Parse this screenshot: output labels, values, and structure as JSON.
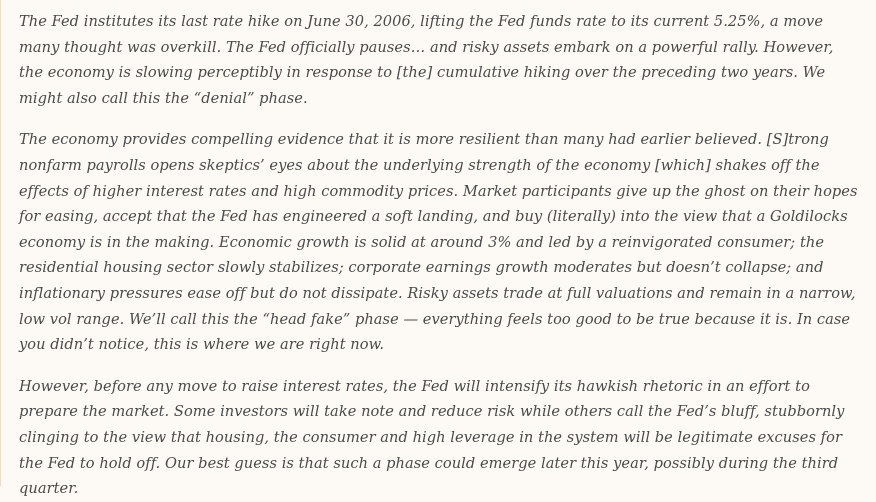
{
  "quote": {
    "paragraphs": [
      "The Fed institutes its last rate hike on June 30, 2006, lifting the Fed funds rate to its current 5.25%, a move many thought was overkill. The Fed officially pauses… and risky assets embark on a powerful rally. However, the economy is slowing perceptibly in response to [the] cumulative hiking over the preceding two years. We might also call this the “denial” phase.",
      "The economy provides compelling evidence that it is more resilient than many had earlier believed. [S]trong nonfarm payrolls opens skeptics’ eyes about the underlying strength of the economy [which] shakes off the effects of higher interest rates and high commodity prices. Market participants give up the ghost on their hopes for easing, accept that the Fed has engineered a soft landing, and buy (literally) into the view that a Goldilocks economy is in the making. Economic growth is solid at around 3% and led by a reinvigorated consumer; the residential housing sector slowly stabilizes; corporate earnings growth moderates but doesn’t collapse; and inflationary pressures ease off but do not dissipate. Risky assets trade at full valuations and remain in a narrow, low vol range. We’ll call this the “head fake” phase — everything feels too good to be true because it is. In case you didn’t notice, this is where we are right now.",
      "However, before any move to raise interest rates, the Fed will intensify its hawkish rhetoric in an effort to prepare the market. Some investors will take note and reduce risk while others call the Fed’s bluff, stubbornly clinging to the view that housing, the consumer and high leverage in the system will be legitimate excuses for the Fed to hold off. Our best guess is that such a phase could emerge later this year, possibly during the third quarter."
    ]
  }
}
